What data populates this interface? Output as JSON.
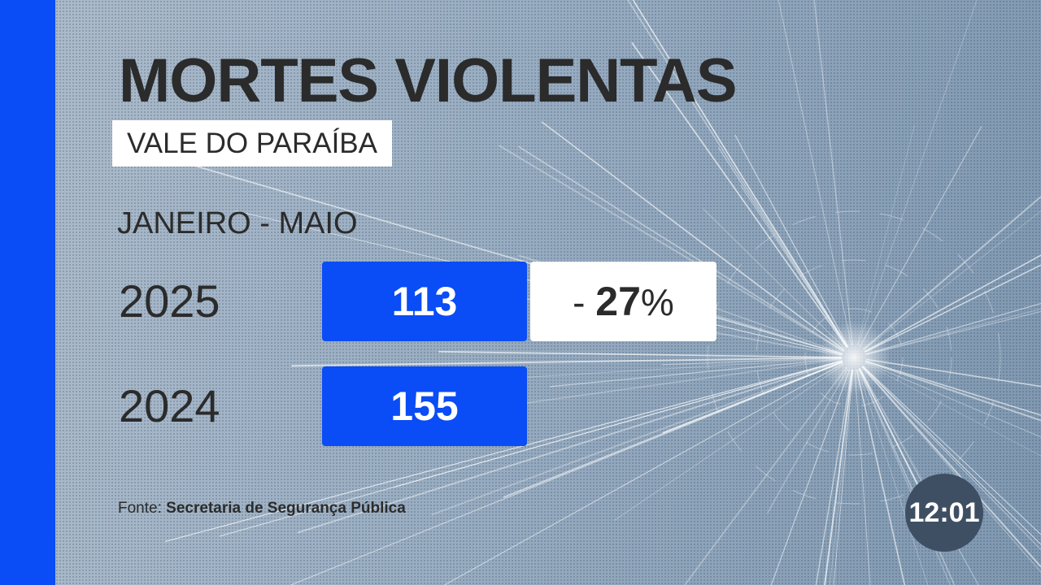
{
  "title": "MORTES VIOLENTAS",
  "region": "VALE DO PARAÍBA",
  "period": "JANEIRO - MAIO",
  "rows": [
    {
      "year": "2025",
      "value": "113"
    },
    {
      "year": "2024",
      "value": "155"
    }
  ],
  "change": {
    "sign": "-",
    "value": "27",
    "unit": "%"
  },
  "source": {
    "label": "Fonte:",
    "name": "Secretaria de Segurança Pública"
  },
  "clock": "12:01",
  "colors": {
    "accent": "#0a4cf5",
    "text": "#2b2b2b",
    "clock_bg": "#3f4f63"
  }
}
